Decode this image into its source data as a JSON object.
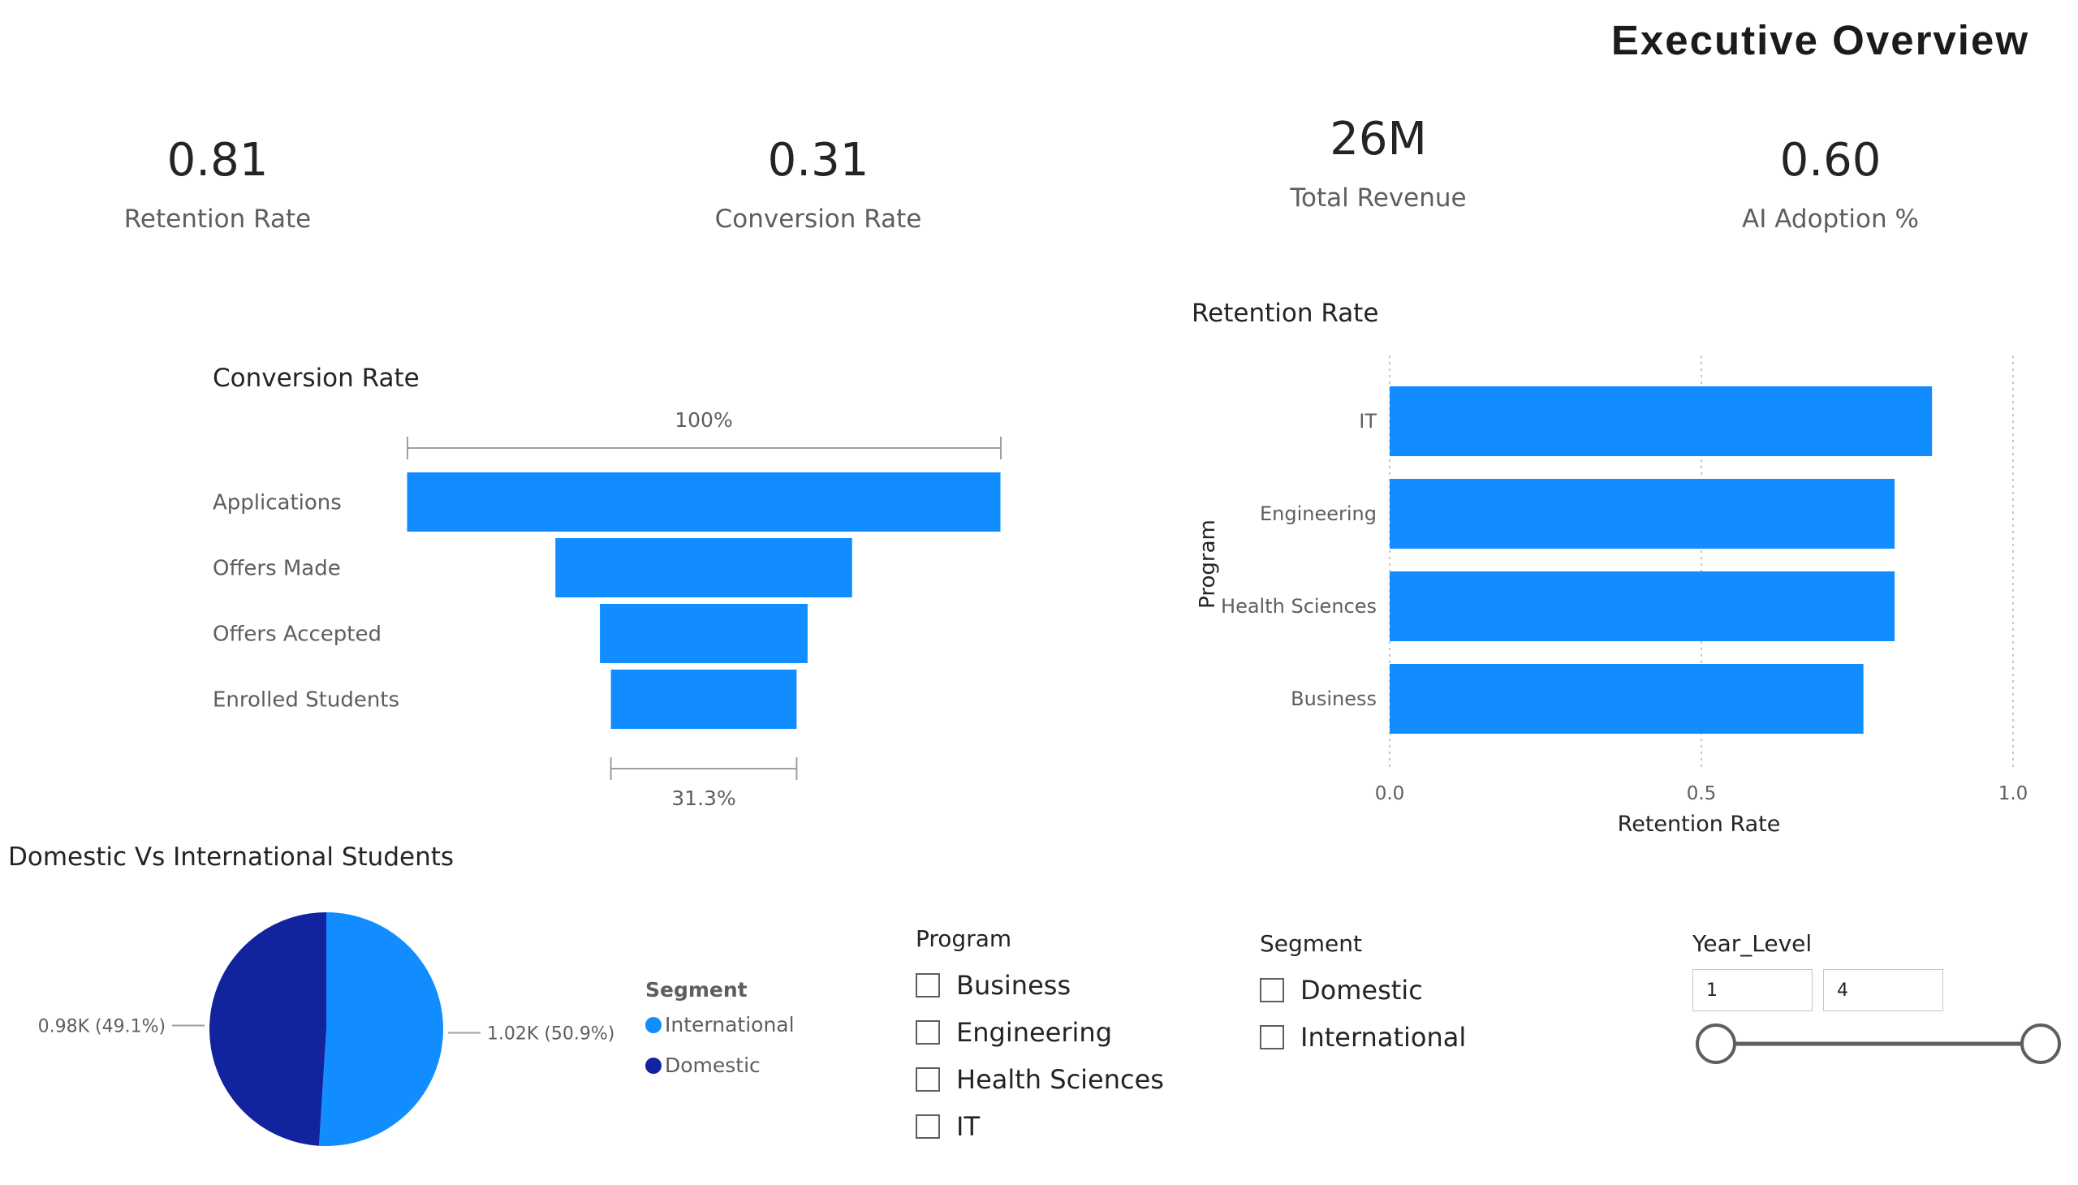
{
  "header": {
    "title": "Executive Overview"
  },
  "kpis": [
    {
      "value": "0.81",
      "label": "Retention Rate"
    },
    {
      "value": "0.31",
      "label": "Conversion Rate"
    },
    {
      "value": "26M",
      "label": "Total Revenue"
    },
    {
      "value": "0.60",
      "label": "AI Adoption %"
    }
  ],
  "colors": {
    "primary": "#118DFF",
    "secondary": "#12239E",
    "axis": "#605e5c",
    "grid": "#c8c6c4"
  },
  "chart_data": [
    {
      "type": "funnel",
      "title": "Conversion Rate",
      "stages": [
        "Applications",
        "Offers Made",
        "Offers Accepted",
        "Enrolled Students"
      ],
      "values": [
        100,
        50,
        35,
        31.3
      ],
      "top_label": "100%",
      "bottom_label": "31.3%"
    },
    {
      "type": "bar",
      "orientation": "horizontal",
      "title": "Retention Rate",
      "categories": [
        "IT",
        "Engineering",
        "Health Sciences",
        "Business"
      ],
      "values": [
        0.87,
        0.81,
        0.81,
        0.76
      ],
      "xlabel": "Retention Rate",
      "ylabel": "Program",
      "xlim": [
        0,
        1
      ],
      "ticks": [
        "0.0",
        "0.5",
        "1.0"
      ]
    },
    {
      "type": "pie",
      "title": "Domestic Vs International Students",
      "legend_title": "Segment",
      "slices": [
        {
          "name": "International",
          "value": 1.02,
          "label": "1.02K (50.9%)"
        },
        {
          "name": "Domestic",
          "value": 0.98,
          "label": "0.98K (49.1%)"
        }
      ]
    }
  ],
  "slicers": {
    "program": {
      "title": "Program",
      "items": [
        "Business",
        "Engineering",
        "Health Sciences",
        "IT"
      ]
    },
    "segment": {
      "title": "Segment",
      "items": [
        "Domestic",
        "International"
      ]
    },
    "year": {
      "title": "Year_Level",
      "min": "1",
      "max": "4"
    }
  }
}
